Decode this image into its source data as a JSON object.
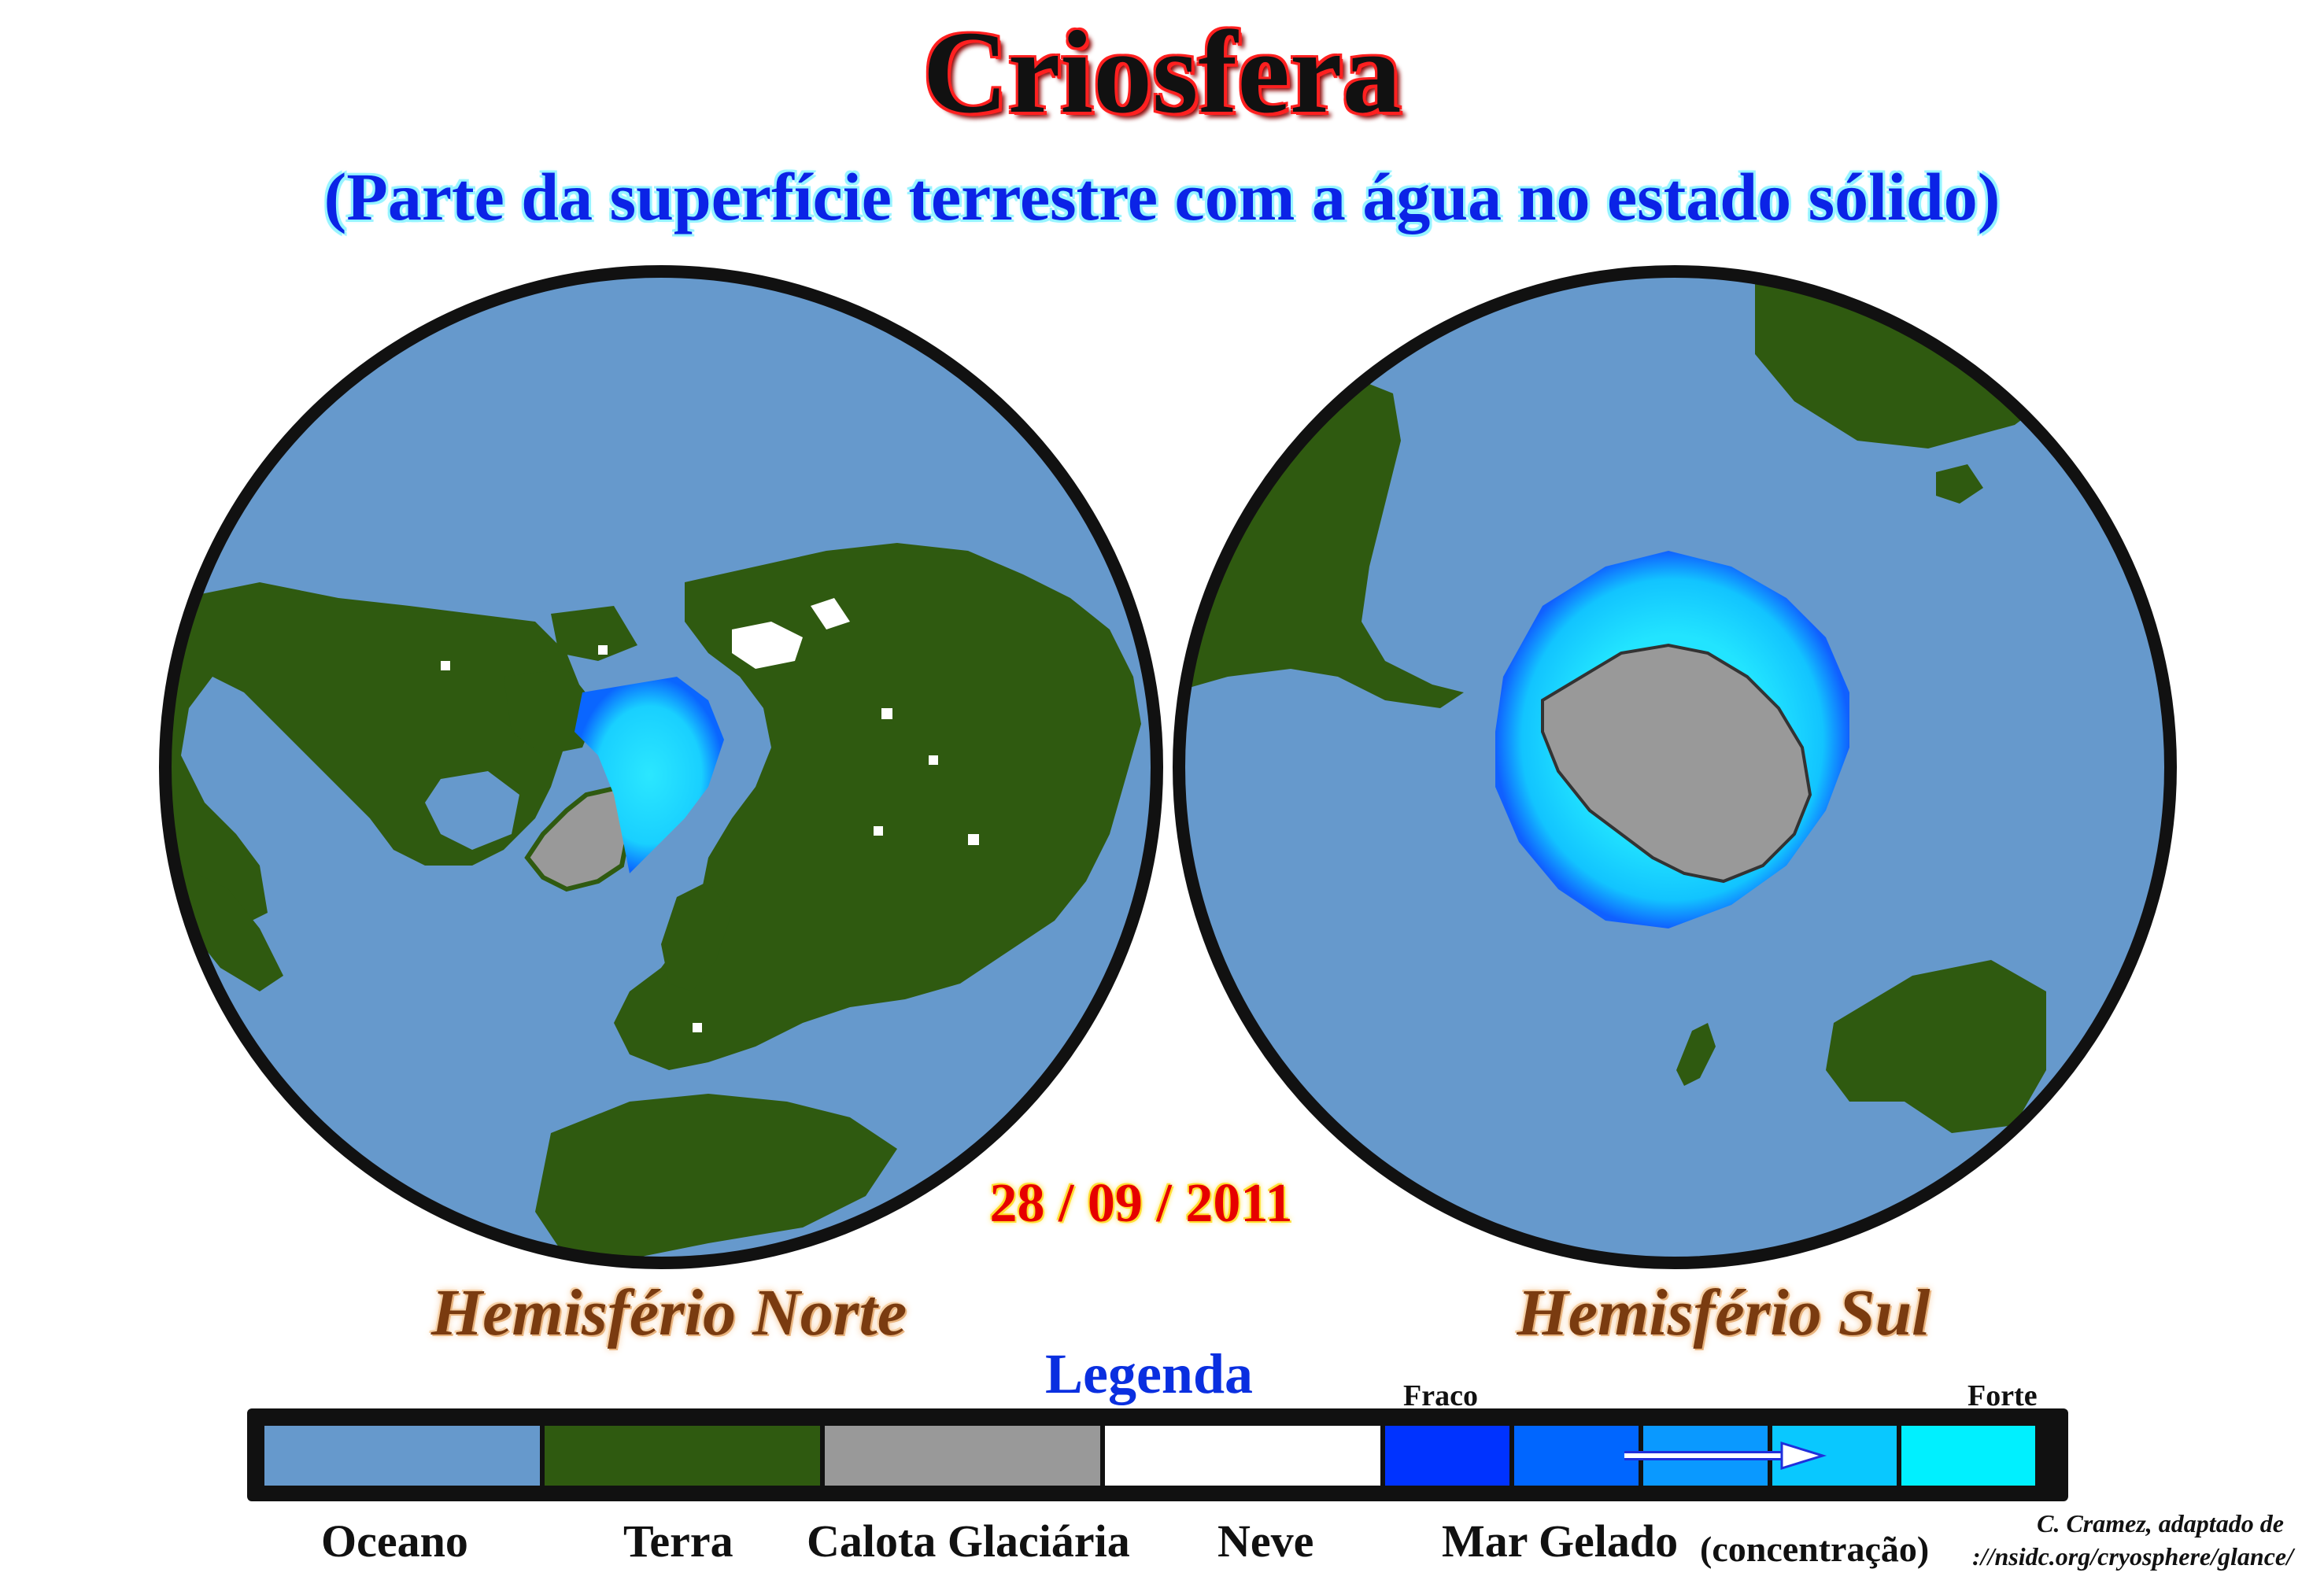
{
  "header": {
    "title": "Criosfera",
    "subtitle": "(Parte da superfície terrestre com a água no estado sólido)"
  },
  "date": "28 / 09 / 2011",
  "hemispheres": {
    "north": "Hemisfério Norte",
    "south": "Hemisfério Sul"
  },
  "legend": {
    "title": "Legenda",
    "weak": "Fraco",
    "strong": "Forte",
    "labels": {
      "ocean": "Oceano",
      "land": "Terra",
      "ice_cap": "Calota Glaciária",
      "snow": "Neve",
      "sea_ice": "Mar Gelado",
      "concentration": "(concentração)"
    },
    "colors": {
      "ocean": "#6699cc",
      "land": "#2f5a10",
      "ice_cap": "#999999",
      "snow": "#ffffff",
      "sea_ice_scale": [
        "#0033ff",
        "#0066ff",
        "#0a99ff",
        "#09c8ff",
        "#00f0ff"
      ]
    }
  },
  "credit": {
    "line1": "C. Cramez, adaptado de",
    "line2": "://nsidc.org/cryosphere/glance/"
  }
}
